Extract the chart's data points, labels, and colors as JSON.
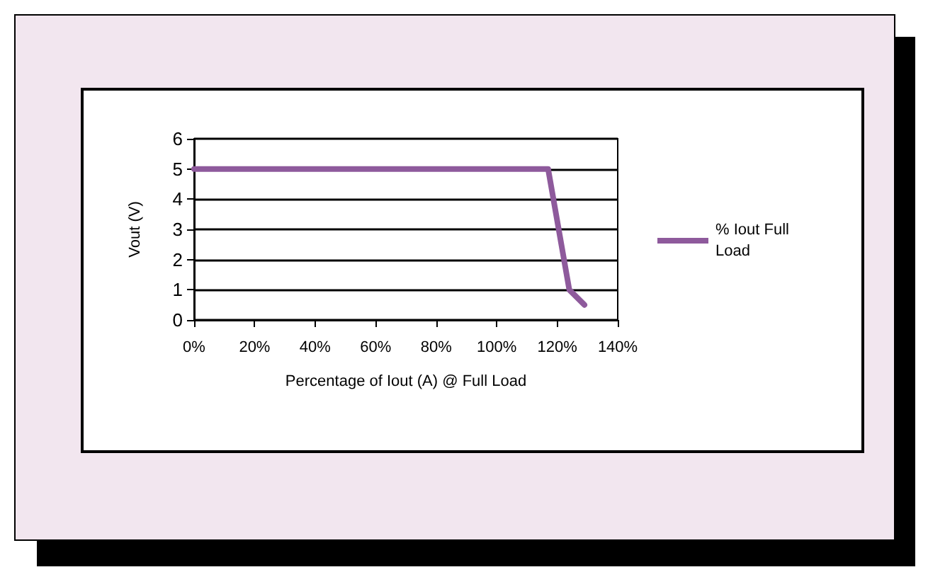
{
  "chart_data": {
    "type": "line",
    "xlabel": "Percentage of Iout (A) @ Full Load",
    "ylabel": "Vout (V)",
    "series": [
      {
        "name": "% Iout Full Load",
        "color": "#8e5a9c",
        "x": [
          0,
          117,
          124,
          129
        ],
        "values": [
          5,
          5,
          1,
          0.5
        ]
      }
    ],
    "xlim": [
      0,
      140
    ],
    "xticks": [
      {
        "value": 0,
        "label": "0%"
      },
      {
        "value": 20,
        "label": "20%"
      },
      {
        "value": 40,
        "label": "40%"
      },
      {
        "value": 60,
        "label": "60%"
      },
      {
        "value": 80,
        "label": "80%"
      },
      {
        "value": 100,
        "label": "100%"
      },
      {
        "value": 120,
        "label": "120%"
      },
      {
        "value": 140,
        "label": "140%"
      }
    ],
    "ylim": [
      0,
      6
    ],
    "yticks": [
      0,
      1,
      2,
      3,
      4,
      5,
      6
    ],
    "grid": "y",
    "legend": "right",
    "marker": "none",
    "line_style": "solid"
  }
}
